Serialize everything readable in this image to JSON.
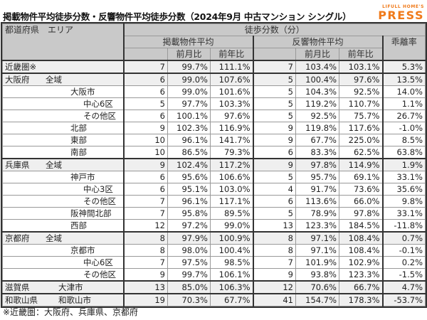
{
  "title": "掲載物件平均徒歩分数・反響物件平均徒歩分数（2024年9月 中古マンション シングル）",
  "logo": {
    "top": "LIFULL HOME'S",
    "main": "PRESS",
    "color": "#f07a1a"
  },
  "headers": {
    "area": "都道府県　エリア",
    "walk_minutes": "徒歩分数（分）",
    "listed_avg": "掲載物件平均",
    "response_avg": "反響物件平均",
    "divergence": "乖離率",
    "mom": "前月比",
    "yoy": "前年比"
  },
  "rows": [
    {
      "pref": "近畿圏※",
      "area": "",
      "indent": 0,
      "listed": "7",
      "listed_mom": "99.7%",
      "listed_yoy": "111.1%",
      "resp": "7",
      "resp_mom": "103.4%",
      "resp_yoy": "103.1%",
      "rate": "5.3%"
    },
    {
      "pref": "大阪府",
      "area": "全域",
      "indent": 0,
      "listed": "6",
      "listed_mom": "99.0%",
      "listed_yoy": "107.6%",
      "resp": "5",
      "resp_mom": "100.4%",
      "resp_yoy": "97.6%",
      "rate": "13.5%"
    },
    {
      "pref": "",
      "area": "大阪市",
      "indent": 1,
      "listed": "6",
      "listed_mom": "99.0%",
      "listed_yoy": "101.6%",
      "resp": "5",
      "resp_mom": "104.3%",
      "resp_yoy": "92.5%",
      "rate": "14.0%"
    },
    {
      "pref": "",
      "area": "中心6区",
      "indent": 2,
      "listed": "5",
      "listed_mom": "97.7%",
      "listed_yoy": "103.3%",
      "resp": "5",
      "resp_mom": "119.2%",
      "resp_yoy": "110.7%",
      "rate": "1.1%"
    },
    {
      "pref": "",
      "area": "その他区",
      "indent": 2,
      "listed": "6",
      "listed_mom": "100.1%",
      "listed_yoy": "97.6%",
      "resp": "5",
      "resp_mom": "92.5%",
      "resp_yoy": "75.7%",
      "rate": "26.7%"
    },
    {
      "pref": "",
      "area": "北部",
      "indent": 1,
      "listed": "9",
      "listed_mom": "102.3%",
      "listed_yoy": "116.9%",
      "resp": "9",
      "resp_mom": "119.8%",
      "resp_yoy": "117.6%",
      "rate": "-1.0%"
    },
    {
      "pref": "",
      "area": "東部",
      "indent": 1,
      "listed": "10",
      "listed_mom": "96.1%",
      "listed_yoy": "141.7%",
      "resp": "9",
      "resp_mom": "67.7%",
      "resp_yoy": "225.0%",
      "rate": "8.5%"
    },
    {
      "pref": "",
      "area": "南部",
      "indent": 1,
      "listed": "10",
      "listed_mom": "86.5%",
      "listed_yoy": "79.3%",
      "resp": "6",
      "resp_mom": "83.3%",
      "resp_yoy": "62.5%",
      "rate": "63.8%"
    },
    {
      "pref": "兵庫県",
      "area": "全域",
      "indent": 0,
      "listed": "9",
      "listed_mom": "102.4%",
      "listed_yoy": "117.2%",
      "resp": "9",
      "resp_mom": "97.8%",
      "resp_yoy": "114.9%",
      "rate": "1.9%"
    },
    {
      "pref": "",
      "area": "神戸市",
      "indent": 1,
      "listed": "6",
      "listed_mom": "95.6%",
      "listed_yoy": "106.6%",
      "resp": "5",
      "resp_mom": "95.7%",
      "resp_yoy": "69.1%",
      "rate": "33.1%"
    },
    {
      "pref": "",
      "area": "中心3区",
      "indent": 2,
      "listed": "6",
      "listed_mom": "95.1%",
      "listed_yoy": "103.0%",
      "resp": "4",
      "resp_mom": "91.7%",
      "resp_yoy": "73.6%",
      "rate": "35.6%"
    },
    {
      "pref": "",
      "area": "その他区",
      "indent": 2,
      "listed": "7",
      "listed_mom": "96.1%",
      "listed_yoy": "117.1%",
      "resp": "6",
      "resp_mom": "113.6%",
      "resp_yoy": "66.0%",
      "rate": "9.8%"
    },
    {
      "pref": "",
      "area": "阪神間北部",
      "indent": 1,
      "listed": "7",
      "listed_mom": "95.8%",
      "listed_yoy": "89.5%",
      "resp": "5",
      "resp_mom": "78.9%",
      "resp_yoy": "97.8%",
      "rate": "33.1%"
    },
    {
      "pref": "",
      "area": "西部",
      "indent": 1,
      "listed": "12",
      "listed_mom": "97.2%",
      "listed_yoy": "99.0%",
      "resp": "13",
      "resp_mom": "123.3%",
      "resp_yoy": "184.5%",
      "rate": "-11.8%"
    },
    {
      "pref": "京都府",
      "area": "全域",
      "indent": 0,
      "listed": "8",
      "listed_mom": "97.9%",
      "listed_yoy": "100.9%",
      "resp": "8",
      "resp_mom": "97.1%",
      "resp_yoy": "108.4%",
      "rate": "0.7%"
    },
    {
      "pref": "",
      "area": "京都市",
      "indent": 1,
      "listed": "8",
      "listed_mom": "98.0%",
      "listed_yoy": "100.4%",
      "resp": "8",
      "resp_mom": "97.1%",
      "resp_yoy": "108.4%",
      "rate": "-0.1%"
    },
    {
      "pref": "",
      "area": "中心6区",
      "indent": 2,
      "listed": "7",
      "listed_mom": "97.5%",
      "listed_yoy": "98.5%",
      "resp": "7",
      "resp_mom": "101.9%",
      "resp_yoy": "102.9%",
      "rate": "0.2%"
    },
    {
      "pref": "",
      "area": "その他区",
      "indent": 2,
      "listed": "9",
      "listed_mom": "99.7%",
      "listed_yoy": "106.1%",
      "resp": "9",
      "resp_mom": "93.8%",
      "resp_yoy": "123.3%",
      "rate": "-1.5%"
    },
    {
      "pref": "滋賀県",
      "area": "大津市",
      "indent": 1,
      "listed": "13",
      "listed_mom": "85.0%",
      "listed_yoy": "106.3%",
      "resp": "12",
      "resp_mom": "70.6%",
      "resp_yoy": "66.7%",
      "rate": "4.7%"
    },
    {
      "pref": "和歌山県",
      "area": "和歌山市",
      "indent": 1,
      "listed": "19",
      "listed_mom": "70.3%",
      "listed_yoy": "67.7%",
      "resp": "41",
      "resp_mom": "154.7%",
      "resp_yoy": "178.3%",
      "rate": "-53.7%"
    }
  ],
  "footnote": "※近畿圏：大阪府、兵庫県、京都府"
}
